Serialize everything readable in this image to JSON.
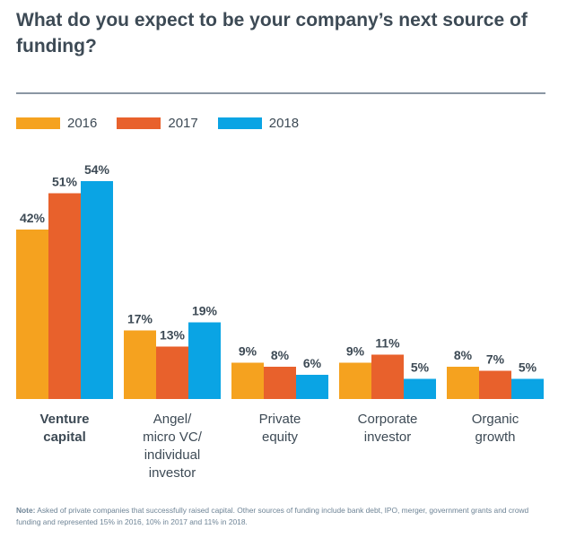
{
  "title": "What do you expect to be your company’s next source of funding?",
  "chart_data": {
    "type": "bar",
    "categories": [
      [
        "Venture",
        "capital"
      ],
      [
        "Angel/",
        "micro VC/",
        "individual",
        "investor"
      ],
      [
        "Private",
        "equity"
      ],
      [
        "Corporate",
        "investor"
      ],
      [
        "Organic",
        "growth"
      ]
    ],
    "highlight_category": 0,
    "series": [
      {
        "name": "2016",
        "color": "#f5a21f",
        "values": [
          42,
          17,
          9,
          9,
          8
        ]
      },
      {
        "name": "2017",
        "color": "#e8612c",
        "values": [
          51,
          13,
          8,
          11,
          7
        ]
      },
      {
        "name": "2018",
        "color": "#0aa4e4",
        "values": [
          54,
          19,
          6,
          5,
          5
        ]
      }
    ],
    "value_suffix": "%",
    "ylim": [
      0,
      60
    ],
    "grid": false,
    "legend_position": "top-left"
  },
  "note": {
    "label": "Note:",
    "text": "Asked of private companies that successfully raised capital. Other sources of funding include bank debt, IPO, merger, government grants and crowd funding and represented 15% in 2016, 10% in 2017 and 11% in 2018."
  }
}
